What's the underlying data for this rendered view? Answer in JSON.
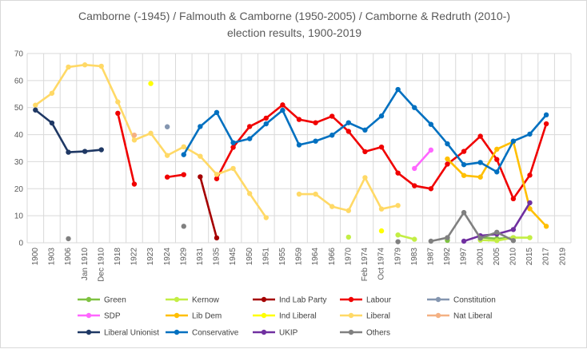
{
  "chart_data": {
    "type": "line",
    "title": "Camborne (-1945) / Falmouth & Camborne (1950-2005) / Camborne & Redruth (2010-)",
    "subtitle": "election results, 1900-2019",
    "xlabel": "",
    "ylabel": "",
    "ylim": [
      0,
      70
    ],
    "yticks": [
      0,
      10,
      20,
      30,
      40,
      50,
      60,
      70
    ],
    "grid": true,
    "legend_position": "bottom",
    "categories": [
      "1900",
      "1903",
      "1906",
      "Jan 1910",
      "Dec 1910",
      "1918",
      "1922",
      "1923",
      "1924",
      "1929",
      "1931",
      "1935",
      "1945",
      "1950",
      "1951",
      "1955",
      "1959",
      "1964",
      "1966",
      "1970",
      "Feb 1974",
      "Oct 1974",
      "1979",
      "1983",
      "1987",
      "1992",
      "1997",
      "2001",
      "2005",
      "2010",
      "2015",
      "2017",
      "2019"
    ],
    "series": [
      {
        "name": "Green",
        "color": "#7fc241",
        "values": [
          null,
          null,
          null,
          null,
          null,
          null,
          null,
          null,
          null,
          null,
          null,
          null,
          null,
          null,
          null,
          null,
          null,
          null,
          null,
          null,
          null,
          null,
          null,
          null,
          null,
          0.9,
          null,
          2.0,
          1.5,
          1.9,
          null,
          null,
          null
        ]
      },
      {
        "name": "Kernow",
        "color": "#c3ee44",
        "values": [
          null,
          null,
          null,
          null,
          null,
          null,
          null,
          null,
          null,
          null,
          null,
          null,
          null,
          null,
          null,
          null,
          null,
          null,
          null,
          2.1,
          null,
          null,
          2.9,
          1.3,
          null,
          null,
          null,
          1.0,
          0.8,
          1.9,
          1.9,
          null,
          null
        ]
      },
      {
        "name": "Ind Lab Party",
        "color": "#a50000",
        "values": [
          null,
          null,
          null,
          null,
          null,
          null,
          null,
          null,
          null,
          null,
          24.4,
          1.8,
          null,
          null,
          null,
          null,
          null,
          null,
          null,
          null,
          null,
          null,
          null,
          null,
          null,
          null,
          null,
          null,
          null,
          null,
          null,
          null,
          null
        ]
      },
      {
        "name": "Labour",
        "color": "#f00000",
        "values": [
          null,
          null,
          null,
          null,
          null,
          47.9,
          21.7,
          null,
          24.3,
          25.2,
          null,
          23.7,
          35.3,
          43.0,
          46.1,
          51.0,
          45.6,
          44.4,
          46.8,
          41.2,
          33.7,
          35.4,
          25.8,
          21.1,
          20.0,
          29.1,
          33.8,
          39.4,
          30.8,
          16.3,
          25.0,
          44.0,
          null
        ]
      },
      {
        "name": "Constitution",
        "color": "#8496b0",
        "values": [
          null,
          null,
          null,
          null,
          null,
          null,
          null,
          null,
          42.9,
          null,
          null,
          null,
          null,
          null,
          null,
          null,
          null,
          null,
          null,
          null,
          null,
          null,
          null,
          null,
          null,
          null,
          null,
          null,
          null,
          null,
          null,
          null,
          null
        ]
      },
      {
        "name": "SDP",
        "color": "#ff66ff",
        "values": [
          null,
          null,
          null,
          null,
          null,
          null,
          null,
          null,
          null,
          null,
          null,
          null,
          null,
          null,
          null,
          null,
          null,
          null,
          null,
          null,
          null,
          null,
          null,
          27.5,
          34.3,
          null,
          null,
          null,
          null,
          null,
          null,
          null,
          null
        ]
      },
      {
        "name": "Lib Dem",
        "color": "#ffbf00",
        "values": [
          null,
          null,
          null,
          null,
          null,
          null,
          null,
          null,
          null,
          null,
          null,
          null,
          null,
          null,
          null,
          null,
          null,
          null,
          null,
          null,
          null,
          null,
          null,
          null,
          null,
          31.0,
          24.9,
          24.3,
          34.6,
          37.4,
          12.6,
          6.1,
          null
        ]
      },
      {
        "name": "Ind Liberal",
        "color": "#ffff00",
        "values": [
          null,
          null,
          null,
          null,
          null,
          null,
          null,
          58.9,
          null,
          null,
          null,
          null,
          null,
          null,
          null,
          null,
          null,
          null,
          null,
          null,
          null,
          4.4,
          null,
          null,
          null,
          null,
          null,
          null,
          null,
          null,
          null,
          null,
          null
        ]
      },
      {
        "name": "Liberal",
        "color": "#ffd966",
        "values": [
          50.9,
          55.3,
          65.0,
          65.8,
          65.3,
          52.1,
          38.0,
          40.5,
          32.3,
          35.5,
          32.0,
          25.3,
          27.5,
          18.2,
          9.3,
          null,
          18.0,
          18.0,
          13.4,
          11.9,
          24.1,
          12.5,
          13.8,
          null,
          null,
          null,
          null,
          null,
          null,
          null,
          null,
          null,
          null
        ]
      },
      {
        "name": "Nat Liberal",
        "color": "#f4b183",
        "values": [
          null,
          null,
          null,
          null,
          null,
          null,
          39.8,
          null,
          null,
          null,
          null,
          null,
          null,
          null,
          null,
          null,
          null,
          null,
          null,
          null,
          null,
          null,
          null,
          null,
          null,
          null,
          null,
          null,
          null,
          null,
          null,
          null,
          null
        ]
      },
      {
        "name": "Liberal Unionist",
        "color": "#1f3864",
        "values": [
          49.1,
          44.3,
          33.5,
          33.8,
          34.4,
          null,
          null,
          null,
          null,
          null,
          null,
          null,
          null,
          null,
          null,
          null,
          null,
          null,
          null,
          null,
          null,
          null,
          null,
          null,
          null,
          null,
          null,
          null,
          null,
          null,
          null,
          null,
          null
        ]
      },
      {
        "name": "Conservative",
        "color": "#0070c0",
        "values": [
          null,
          null,
          null,
          null,
          null,
          null,
          null,
          null,
          null,
          32.6,
          43.0,
          48.2,
          37.0,
          38.5,
          44.0,
          49.0,
          36.2,
          37.6,
          39.8,
          44.4,
          41.7,
          46.9,
          56.7,
          50.0,
          43.8,
          36.6,
          28.9,
          29.7,
          26.2,
          37.6,
          40.2,
          47.3,
          null
        ]
      },
      {
        "name": "UKIP",
        "color": "#7030a0",
        "values": [
          null,
          null,
          null,
          null,
          null,
          null,
          null,
          null,
          null,
          null,
          null,
          null,
          null,
          null,
          null,
          null,
          null,
          null,
          null,
          null,
          null,
          null,
          null,
          null,
          null,
          null,
          0.6,
          2.6,
          3.2,
          4.9,
          14.8,
          null,
          null
        ]
      },
      {
        "name": "Others",
        "color": "#808080",
        "values": [
          null,
          null,
          1.5,
          null,
          null,
          null,
          null,
          null,
          null,
          6.1,
          null,
          null,
          null,
          null,
          null,
          null,
          null,
          null,
          null,
          null,
          null,
          null,
          0.4,
          null,
          0.6,
          1.9,
          11.2,
          1.7,
          3.9,
          0.8,
          null,
          null,
          null
        ]
      }
    ]
  }
}
